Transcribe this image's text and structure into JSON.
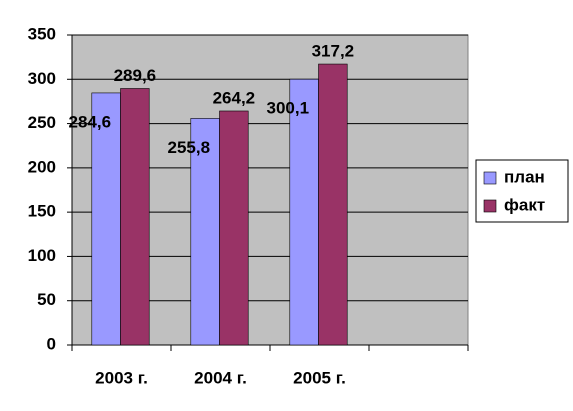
{
  "chart_data": {
    "type": "bar",
    "categories": [
      "2003 г.",
      "2004 г.",
      "2005 г.",
      null
    ],
    "series": [
      {
        "name": "план",
        "color": "#9999ff",
        "values": [
          284.6,
          255.8,
          300.1,
          null
        ],
        "value_labels": [
          "284,6",
          "255,8",
          "300,1",
          null
        ]
      },
      {
        "name": "факт",
        "color": "#993366",
        "values": [
          289.6,
          264.2,
          317.2,
          null
        ],
        "value_labels": [
          "289,6",
          "264,2",
          "317,2",
          null
        ]
      }
    ],
    "ylim": [
      0,
      350
    ],
    "yticks": [
      0,
      50,
      100,
      150,
      200,
      250,
      300,
      350
    ],
    "grid": true,
    "legend": "right"
  }
}
